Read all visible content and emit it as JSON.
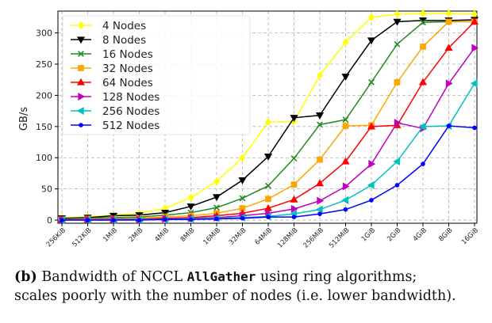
{
  "chart_data": {
    "type": "line",
    "title": "",
    "xlabel": "",
    "ylabel": "GB/s",
    "ylim": [
      -5,
      335
    ],
    "yticks": [
      0,
      50,
      100,
      150,
      200,
      250,
      300
    ],
    "grid": true,
    "legend_position": "top-left",
    "categories": [
      "256KiB",
      "512KiB",
      "1MiB",
      "2MiB",
      "4MiB",
      "8MiB",
      "16MiB",
      "32MiB",
      "64MiB",
      "128MiB",
      "256MiB",
      "512MiB",
      "1GiB",
      "2GiB",
      "4GiB",
      "8GiB",
      "16GiB"
    ],
    "series": [
      {
        "name": "4 Nodes",
        "color": "#ffff00",
        "marker": "diamond",
        "values": [
          4,
          5,
          8,
          11,
          19,
          36,
          62,
          100,
          157,
          158,
          232,
          285,
          325,
          330,
          331,
          331,
          330
        ]
      },
      {
        "name": "8 Nodes",
        "color": "#000000",
        "marker": "triangle-down",
        "values": [
          3,
          4,
          7,
          8,
          12,
          22,
          37,
          64,
          102,
          164,
          168,
          230,
          288,
          318,
          320,
          320,
          321
        ]
      },
      {
        "name": "16 Nodes",
        "color": "#228b22",
        "marker": "x",
        "values": [
          2,
          3,
          4,
          5,
          8,
          12,
          20,
          35,
          55,
          99,
          153,
          161,
          221,
          282,
          317,
          318,
          318
        ]
      },
      {
        "name": "32 Nodes",
        "color": "#ffa500",
        "marker": "square",
        "values": [
          1,
          2,
          2,
          3,
          5,
          7,
          11,
          19,
          34,
          57,
          97,
          151,
          152,
          221,
          278,
          318,
          318
        ]
      },
      {
        "name": "64 Nodes",
        "color": "#ff0000",
        "marker": "triangle-up",
        "values": [
          1,
          1,
          1,
          2,
          3,
          4,
          7,
          11,
          19,
          33,
          59,
          94,
          150,
          152,
          221,
          276,
          318
        ]
      },
      {
        "name": "128 Nodes",
        "color": "#c000c0",
        "marker": "triangle-right",
        "values": [
          0,
          1,
          1,
          1,
          2,
          3,
          4,
          7,
          11,
          18,
          31,
          54,
          90,
          156,
          147,
          219,
          276
        ]
      },
      {
        "name": "256 Nodes",
        "color": "#00c0c0",
        "marker": "triangle-left",
        "values": [
          0,
          0,
          0,
          1,
          1,
          2,
          3,
          4,
          6,
          10,
          17,
          32,
          56,
          94,
          150,
          151,
          219
        ]
      },
      {
        "name": "512 Nodes",
        "color": "#0000ff",
        "marker": "dot",
        "values": [
          0,
          0,
          0,
          0,
          1,
          1,
          2,
          3,
          5,
          5,
          10,
          17,
          32,
          56,
          90,
          151,
          148
        ]
      }
    ]
  },
  "caption": {
    "label": "(b)",
    "text_before": "Bandwidth of NCCL",
    "op": "AllGather",
    "text_after": "using ring algorithms;",
    "line2": "scales poorly with the number of nodes (i.e. lower bandwidth)."
  }
}
